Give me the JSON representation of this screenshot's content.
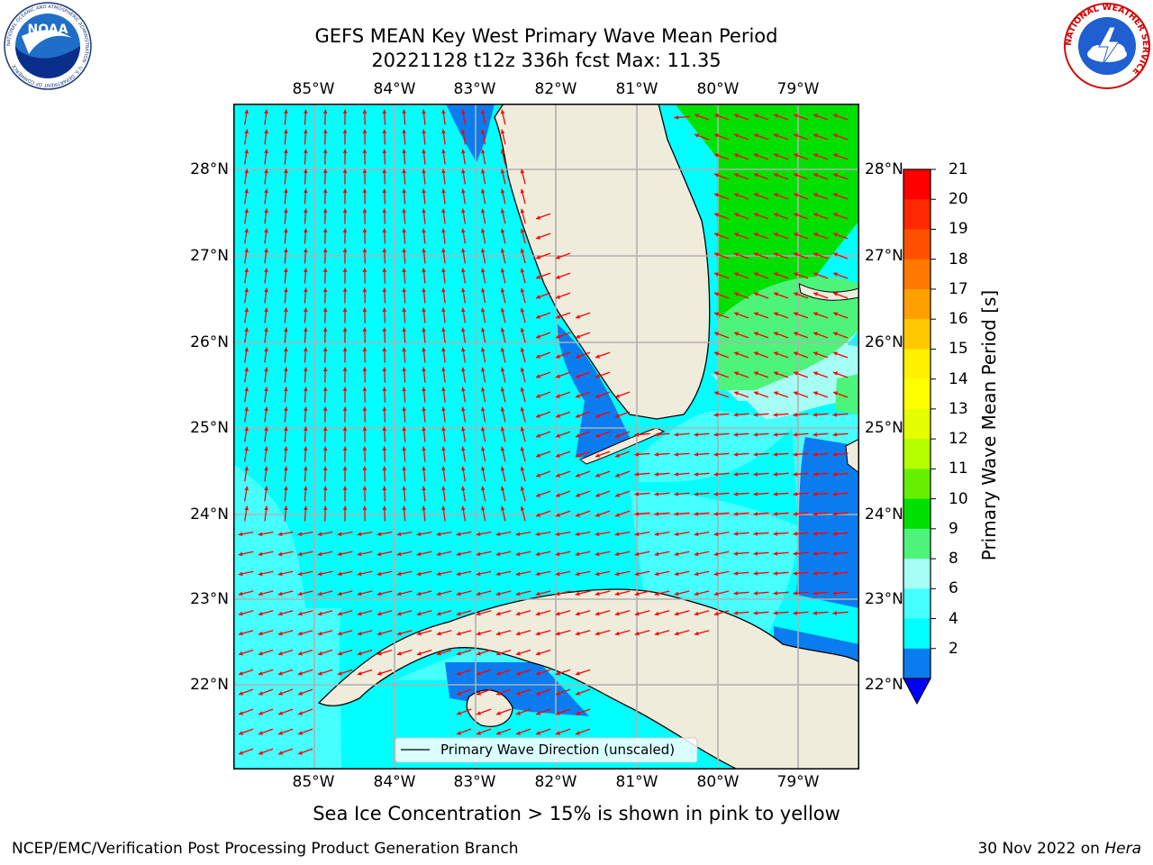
{
  "title": {
    "line1": "GEFS MEAN Key West Primary Wave Mean Period",
    "line2": "20221128 t12z 336h fcst   Max: 11.35"
  },
  "logos": {
    "noaa_text": "NOAA",
    "noaa_ring_text": "NATIONAL OCEANIC AND ATMOSPHERIC ADMINISTRATION · U.S. DEPARTMENT OF COMMERCE",
    "nws_ring_text": "NATIONAL WEATHER SERVICE"
  },
  "map": {
    "lon_ticks": [
      "85°W",
      "84°W",
      "83°W",
      "82°W",
      "81°W",
      "80°W",
      "79°W"
    ],
    "lat_ticks": [
      "28°N",
      "27°N",
      "26°N",
      "25°N",
      "24°N",
      "23°N",
      "22°N"
    ],
    "legend_label": "Primary Wave Direction (unscaled)",
    "colors": {
      "land": "#efecdc",
      "range_2_4": "#0a7cf0",
      "range_4_6": "#00ffff",
      "range_6_8": "#46ffff",
      "range_8_9": "#a6fff4",
      "range_9_10": "#4cf57a",
      "range_10_11": "#00e000",
      "arrow": "#ff0000"
    }
  },
  "colorbar": {
    "label": "Primary Wave Mean Period [s]",
    "ticks": [
      "21",
      "20",
      "19",
      "18",
      "17",
      "16",
      "15",
      "14",
      "13",
      "12",
      "11",
      "10",
      "9",
      "8",
      "6",
      "4",
      "2"
    ],
    "segment_colors": [
      "#ff0000",
      "#ff2800",
      "#ff5000",
      "#ff7800",
      "#ffa000",
      "#ffc800",
      "#fff000",
      "#ffff00",
      "#e6ff00",
      "#b4ff00",
      "#64f000",
      "#00e000",
      "#4cf57a",
      "#a6fff4",
      "#46ffff",
      "#00ffff",
      "#0a7cf0"
    ],
    "extend_color": "#0000ff"
  },
  "notes": {
    "sea_ice": "Sea Ice Concentration > 15% is shown in pink to yellow"
  },
  "footer": {
    "left": "NCEP/EMC/Verification Post Processing Product Generation Branch",
    "date": "30 Nov 2022 on",
    "machine": "Hera"
  }
}
